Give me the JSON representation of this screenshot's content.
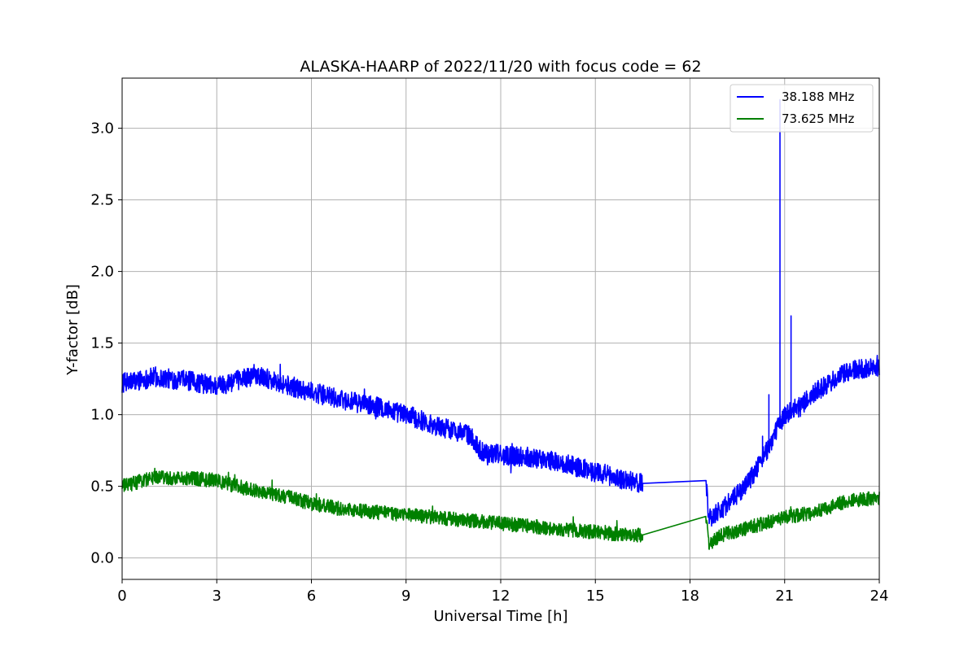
{
  "chart_data": {
    "type": "line",
    "title": "ALASKA-HAARP of 2022/11/20 with focus code = 62",
    "xlabel": "Universal Time [h]",
    "ylabel": "Y-factor [dB]",
    "xlim": [
      0,
      24
    ],
    "ylim": [
      -0.15,
      3.35
    ],
    "xticks": [
      0,
      3,
      6,
      9,
      12,
      15,
      18,
      21,
      24
    ],
    "xtick_labels": [
      "0",
      "3",
      "6",
      "9",
      "12",
      "15",
      "18",
      "21",
      "24"
    ],
    "yticks": [
      0.0,
      0.5,
      1.0,
      1.5,
      2.0,
      2.5,
      3.0
    ],
    "ytick_labels": [
      "0.0",
      "0.5",
      "1.0",
      "1.5",
      "2.0",
      "2.5",
      "3.0"
    ],
    "grid": true,
    "legend": "top-right",
    "series": [
      {
        "name": "38.188 MHz",
        "color": "#0000ff",
        "x": [
          0,
          1,
          2,
          3,
          4,
          4.3,
          5,
          6,
          7,
          8,
          9,
          10,
          11,
          11.4,
          12,
          13,
          14,
          15,
          16,
          16.5,
          18.5,
          18.6,
          19,
          19.5,
          20,
          20.5,
          20.9,
          21,
          21.5,
          22,
          23,
          24
        ],
        "y": [
          1.22,
          1.26,
          1.24,
          1.2,
          1.26,
          1.28,
          1.22,
          1.16,
          1.1,
          1.06,
          1.0,
          0.92,
          0.86,
          0.74,
          0.72,
          0.7,
          0.66,
          0.6,
          0.54,
          0.52,
          0.54,
          0.28,
          0.34,
          0.44,
          0.58,
          0.78,
          0.96,
          1.0,
          1.06,
          1.16,
          1.3,
          1.34
        ],
        "noise_amplitude": 0.07,
        "gap": [
          16.5,
          18.5
        ],
        "spikes": [
          {
            "x": 20.85,
            "y": 3.2
          },
          {
            "x": 21.2,
            "y": 1.69
          },
          {
            "x": 20.5,
            "y": 1.14
          },
          {
            "x": 20.3,
            "y": 0.85
          }
        ]
      },
      {
        "name": "73.625 MHz",
        "color": "#008000",
        "x": [
          0,
          1,
          2,
          3,
          4,
          5,
          6,
          7,
          8,
          9,
          10,
          11,
          12,
          13,
          14,
          15,
          16,
          16.5,
          18.5,
          18.6,
          19,
          20,
          21,
          22,
          23,
          24
        ],
        "y": [
          0.5,
          0.56,
          0.56,
          0.54,
          0.48,
          0.44,
          0.38,
          0.34,
          0.32,
          0.3,
          0.28,
          0.26,
          0.24,
          0.22,
          0.2,
          0.18,
          0.16,
          0.16,
          0.29,
          0.1,
          0.16,
          0.22,
          0.28,
          0.32,
          0.4,
          0.42
        ],
        "noise_amplitude": 0.05,
        "gap": [
          16.5,
          18.5
        ]
      }
    ]
  }
}
